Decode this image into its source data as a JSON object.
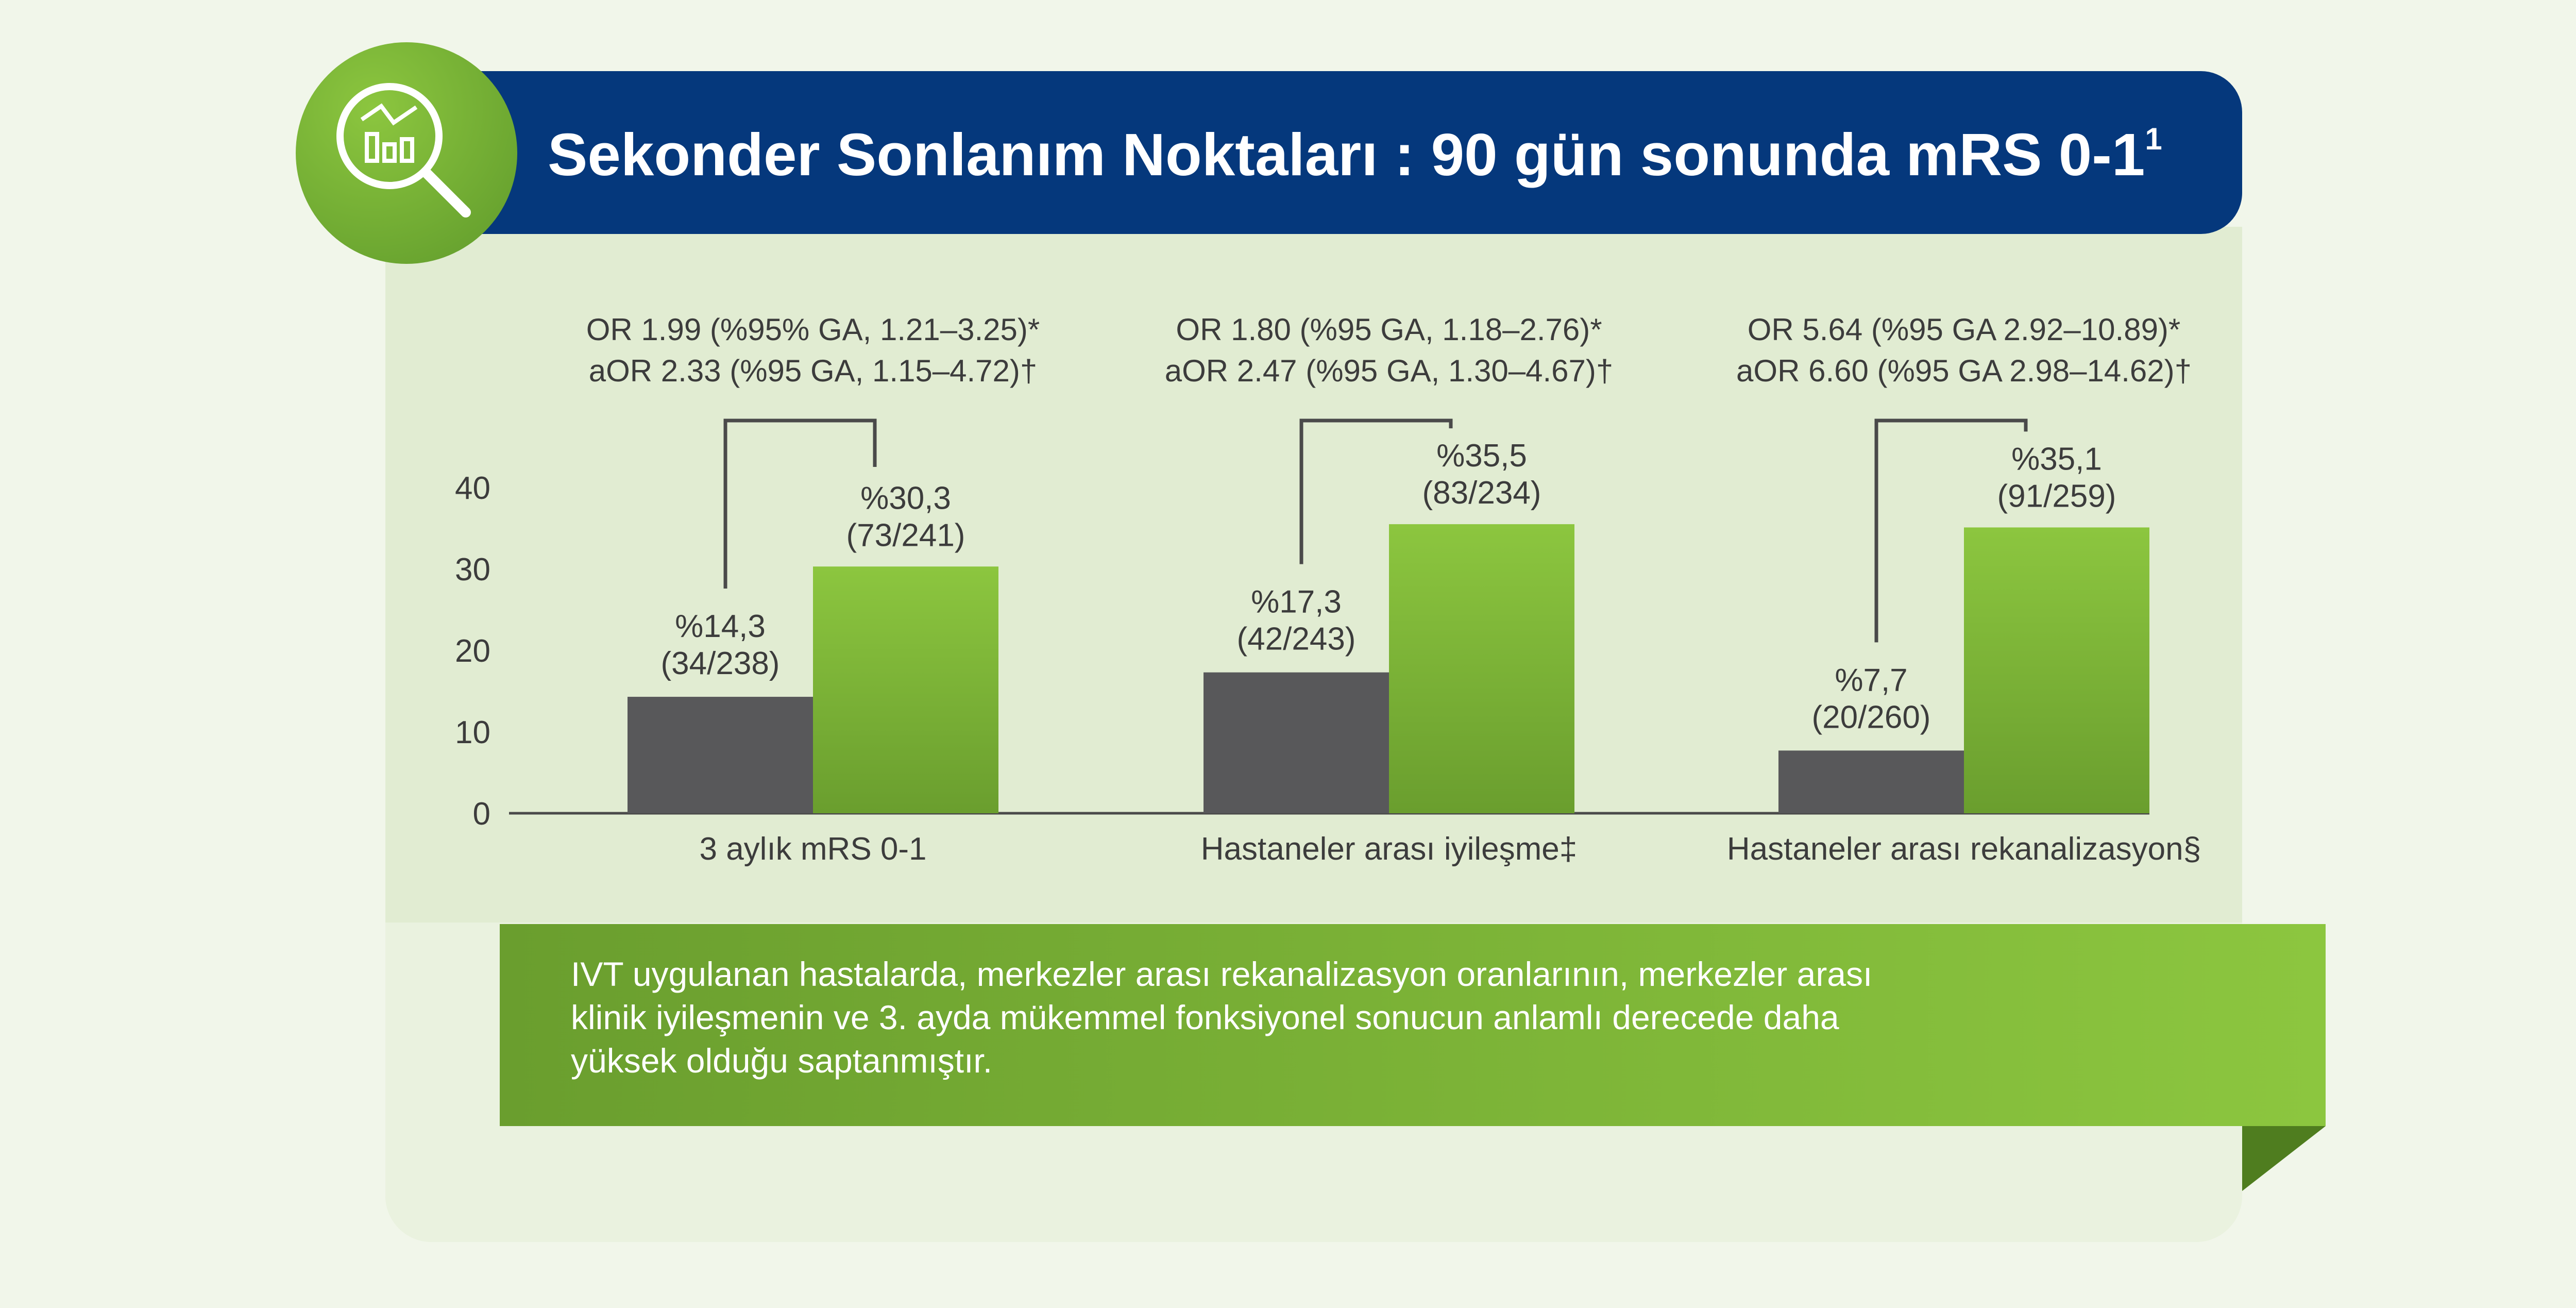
{
  "header": {
    "title": "Sekonder Sonlanım Noktaları : 90 gün sonunda mRS 0-1",
    "title_superscript": "1"
  },
  "badge": {
    "icon": "chart-magnifier-icon"
  },
  "colors": {
    "header": "#05387c",
    "bar_control": "#58585a",
    "bar_treatment": "#8cc63f",
    "bar_treatment_dark": "#6a9e2e",
    "panel": "#e1ecd2",
    "background": "#f1f6ea"
  },
  "chart_data": {
    "type": "bar",
    "categories": [
      "3 aylık mRS 0-1",
      "Hastaneler arası iyileşme‡",
      "Hastaneler arası rekanalizasyon§"
    ],
    "series": [
      {
        "values": [
          14.3,
          17.3,
          7.7
        ],
        "labels": [
          "%14,3",
          "%17,3",
          "%7,7"
        ],
        "counts": [
          "(34/238)",
          "(42/243)",
          "(20/260)"
        ]
      },
      {
        "values": [
          30.3,
          35.5,
          35.1
        ],
        "labels": [
          "%30,3",
          "%35,5",
          "%35,1"
        ],
        "counts": [
          "(73/241)",
          "(83/234)",
          "(91/259)"
        ]
      }
    ],
    "odds_ratios": [
      {
        "or": "OR 1.99 (%95% GA, 1.21–3.25)*",
        "aor": "aOR 2.33 (%95 GA, 1.15–4.72)†"
      },
      {
        "or": "OR 1.80 (%95 GA, 1.18–2.76)*",
        "aor": "aOR 2.47 (%95 GA, 1.30–4.67)†"
      },
      {
        "or": "OR 5.64 (%95 GA 2.92–10.89)*",
        "aor": "aOR 6.60 (%95 GA 2.98–14.62)†"
      }
    ],
    "y_ticks": [
      "0",
      "10",
      "20",
      "30",
      "40"
    ],
    "ylim": [
      0,
      40
    ],
    "grid": false
  },
  "banner": {
    "lines": [
      "IVT uygulanan hastalarda, merkezler arası rekanalizasyon oranlarının, merkezler arası",
      "klinik iyileşmenin ve 3. ayda mükemmel fonksiyonel sonucun anlamlı derecede daha",
      "yüksek olduğu saptanmıştır."
    ]
  }
}
